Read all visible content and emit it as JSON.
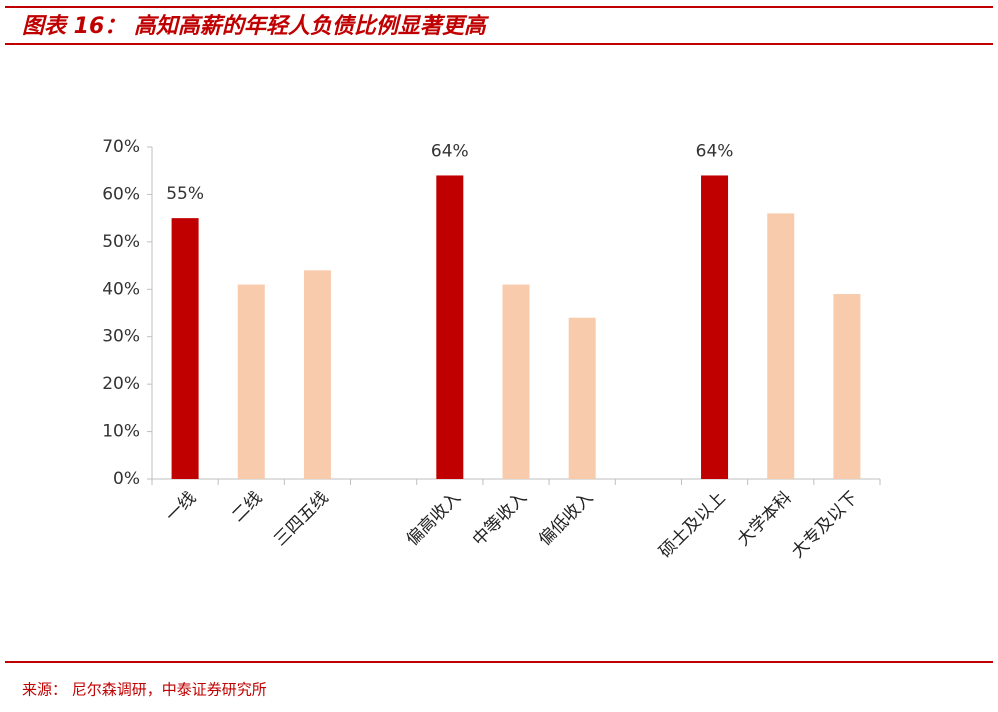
{
  "title": "图表 16： 高知高薪的年轻人负债比例显著更高",
  "source": "来源： 尼尔森调研，中泰证券研究所",
  "chart_data": {
    "type": "bar",
    "categories": [
      "一线",
      "二线",
      "三四五线",
      null,
      "偏高收入",
      "中等收入",
      "偏低收入",
      null,
      "硕士及以上",
      "大学本科",
      "大专及以下"
    ],
    "values": [
      55,
      41,
      44,
      null,
      64,
      41,
      34,
      null,
      64,
      56,
      39
    ],
    "value_labels": [
      "55%",
      null,
      null,
      null,
      "64%",
      null,
      null,
      null,
      "64%",
      null,
      null
    ],
    "colors": [
      "#c00000",
      "#f8cbad",
      "#f8cbad",
      null,
      "#c00000",
      "#f8cbad",
      "#f8cbad",
      null,
      "#c00000",
      "#f8cbad",
      "#f8cbad"
    ],
    "ylim": [
      0,
      70
    ],
    "yticks": [
      {
        "value": 0,
        "label": "0%"
      },
      {
        "value": 10,
        "label": "10%"
      },
      {
        "value": 20,
        "label": "20%"
      },
      {
        "value": 30,
        "label": "30%"
      },
      {
        "value": 40,
        "label": "40%"
      },
      {
        "value": 50,
        "label": "50%"
      },
      {
        "value": 60,
        "label": "60%"
      },
      {
        "value": 70,
        "label": "70%"
      }
    ],
    "grid": false
  }
}
